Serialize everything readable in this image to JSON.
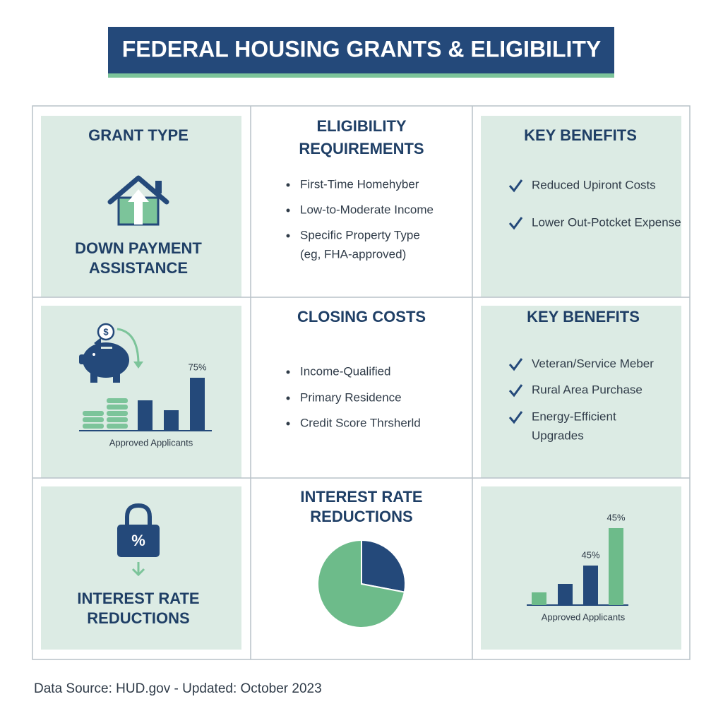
{
  "title": "FEDERAL HOUSING GRANTS & ELIGIBILITY",
  "grant_type": {
    "heading": [
      "GRANT TYPE"
    ],
    "caption": [
      "DOWN PAYMENT",
      "ASSISTANCE"
    ]
  },
  "eligibility": {
    "heading": [
      "ELIGIBILITY",
      "REQUIREMENTS"
    ],
    "items": [
      [
        "First-Time Homehyber"
      ],
      [
        "Low-to-Moderate Income"
      ],
      [
        "Specific Property Type",
        "(eg, FHA-approved)"
      ]
    ]
  },
  "benefits_1": {
    "heading": [
      "KEY BENEFITS"
    ],
    "items": [
      [
        "Reduced Upiront Costs"
      ],
      [
        "Lower Out-Potcket Expense"
      ]
    ]
  },
  "chart_1": {
    "type": "bar",
    "values": [
      43,
      29,
      75
    ],
    "colors": [
      "#24497a",
      "#24497a",
      "#24497a"
    ],
    "annotations": [
      "75%"
    ],
    "caption": "Approved Applicants"
  },
  "closing_costs": {
    "heading": [
      "CLOSING COSTS"
    ],
    "items": [
      [
        "Income-Qualified"
      ],
      [
        "Primary Residence"
      ],
      [
        "Credit Score Thrsherld"
      ]
    ]
  },
  "benefits_2": {
    "heading": [
      "KEY BENEFITS"
    ],
    "items": [
      [
        "Veteran/Service Meber"
      ],
      [
        "Rural Area Purchase"
      ],
      [
        "Energy-Efficient",
        "Upgrades"
      ]
    ]
  },
  "interest": {
    "caption": [
      "INTEREST RATE",
      "REDUCTIONS"
    ]
  },
  "pie": {
    "type": "pie",
    "heading": [
      "INTEREST RATE",
      "REDUCTIONS"
    ],
    "values": [
      28,
      72
    ],
    "colors": [
      "#24497a",
      "#6dbb8a"
    ]
  },
  "chart_3": {
    "type": "bar",
    "values": [
      18,
      30,
      56,
      109
    ],
    "colors": [
      "#6dbb8a",
      "#24497a",
      "#24497a",
      "#6dbb8a"
    ],
    "annotations": [
      "45%",
      "45%"
    ],
    "caption": "Approved Applicants"
  },
  "footer": "Data Source: HUD.gov - Updated: October 2023"
}
